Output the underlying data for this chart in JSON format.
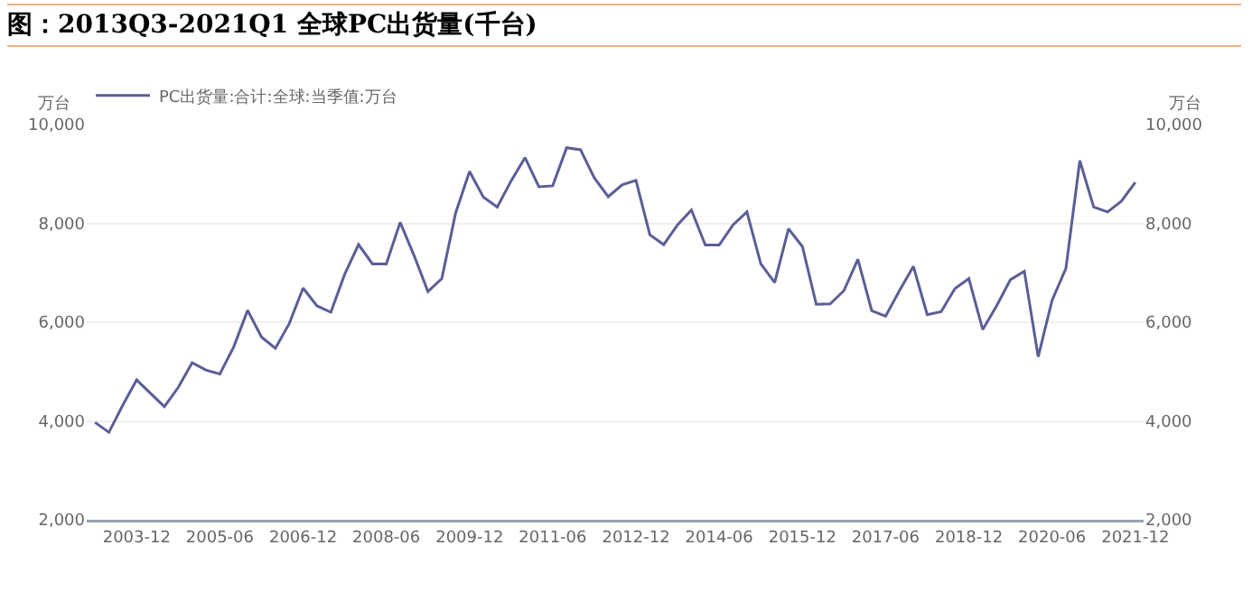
{
  "chart_data": {
    "type": "line",
    "title": "图：2013Q3-2021Q1 全球PC出货量(千台)",
    "ylabel": "万台",
    "y2label": "万台",
    "categories": [
      null,
      null,
      null,
      "2003-12",
      null,
      null,
      null,
      null,
      null,
      "2005-06",
      null,
      null,
      null,
      null,
      null,
      "2006-12",
      null,
      null,
      null,
      null,
      null,
      "2008-06",
      null,
      null,
      null,
      null,
      null,
      "2009-12",
      null,
      null,
      null,
      null,
      null,
      "2011-06",
      null,
      null,
      null,
      null,
      null,
      "2012-12",
      null,
      null,
      null,
      null,
      null,
      "2014-06",
      null,
      null,
      null,
      null,
      null,
      "2015-12",
      null,
      null,
      null,
      null,
      null,
      "2017-06",
      null,
      null,
      null,
      null,
      null,
      "2018-12",
      null,
      null,
      null,
      null,
      null,
      "2020-06",
      null,
      null,
      null,
      null,
      null,
      "2021-12"
    ],
    "series": [
      {
        "name": "PC出货量:合计:全球:当季值:万台",
        "color": "#5b5e96",
        "values": [
          3970,
          3770,
          4320,
          4830,
          4560,
          4290,
          4680,
          5180,
          5030,
          4950,
          5500,
          6240,
          5700,
          5470,
          5970,
          6690,
          6330,
          6200,
          6970,
          7570,
          7180,
          7180,
          8020,
          7350,
          6620,
          6880,
          8210,
          9050,
          8530,
          8330,
          8860,
          9330,
          8740,
          8760,
          9530,
          9490,
          8920,
          8540,
          8780,
          8870,
          7770,
          7570,
          7970,
          8270,
          7560,
          7560,
          7970,
          8230,
          7180,
          6800,
          7890,
          7530,
          6360,
          6370,
          6640,
          7270,
          6230,
          6120,
          6640,
          7130,
          6150,
          6210,
          6680,
          6880,
          5850,
          6330,
          6860,
          7030,
          5300,
          6440,
          7090,
          9270,
          8330,
          8230,
          8450,
          8830
        ]
      }
    ],
    "ylim": [
      2000,
      10000
    ],
    "yticks": [
      {
        "value": 2000,
        "label": "2,000"
      },
      {
        "value": 4000,
        "label": "4,000"
      },
      {
        "value": 6000,
        "label": "6,000"
      },
      {
        "value": 8000,
        "label": "8,000"
      },
      {
        "value": 10000,
        "label": "10,000"
      }
    ],
    "y2lim": [
      2000,
      10000
    ],
    "y2ticks": [
      {
        "value": 2000,
        "label": "2,000"
      },
      {
        "value": 4000,
        "label": "4,000"
      },
      {
        "value": 6000,
        "label": "6,000"
      },
      {
        "value": 8000,
        "label": "8,000"
      },
      {
        "value": 10000,
        "label": "10,000"
      }
    ],
    "grid": "y",
    "legend": "top left",
    "marker": "none",
    "line_style": "solid"
  }
}
